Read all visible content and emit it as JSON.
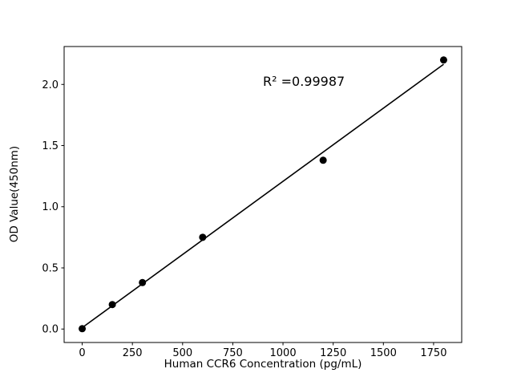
{
  "chart_data": {
    "type": "scatter",
    "title": "",
    "xlabel": "Human CCR6 Concentration (pg/mL)",
    "ylabel": "OD Value(450nm)",
    "x": [
      0,
      150,
      300,
      600,
      1200,
      1800
    ],
    "y": [
      0.003,
      0.2,
      0.38,
      0.75,
      1.38,
      2.2
    ],
    "fit": {
      "type": "linear"
    },
    "annotation": {
      "text": "R² =0.99987"
    },
    "xlim": [
      -90,
      1890
    ],
    "ylim": [
      -0.11,
      2.31
    ],
    "xticks": {
      "values": [
        0,
        250,
        500,
        750,
        1000,
        1250,
        1500,
        1750
      ],
      "labels": [
        "0",
        "250",
        "500",
        "750",
        "1000",
        "1250",
        "1500",
        "1750"
      ]
    },
    "yticks": {
      "values": [
        0.0,
        0.5,
        1.0,
        1.5,
        2.0
      ],
      "labels": [
        "0.0",
        "0.5",
        "1.0",
        "1.5",
        "2.0"
      ]
    },
    "legend": null,
    "grid": false,
    "marker_color": "#000000",
    "line_color": "#000000",
    "background": "#ffffff"
  }
}
